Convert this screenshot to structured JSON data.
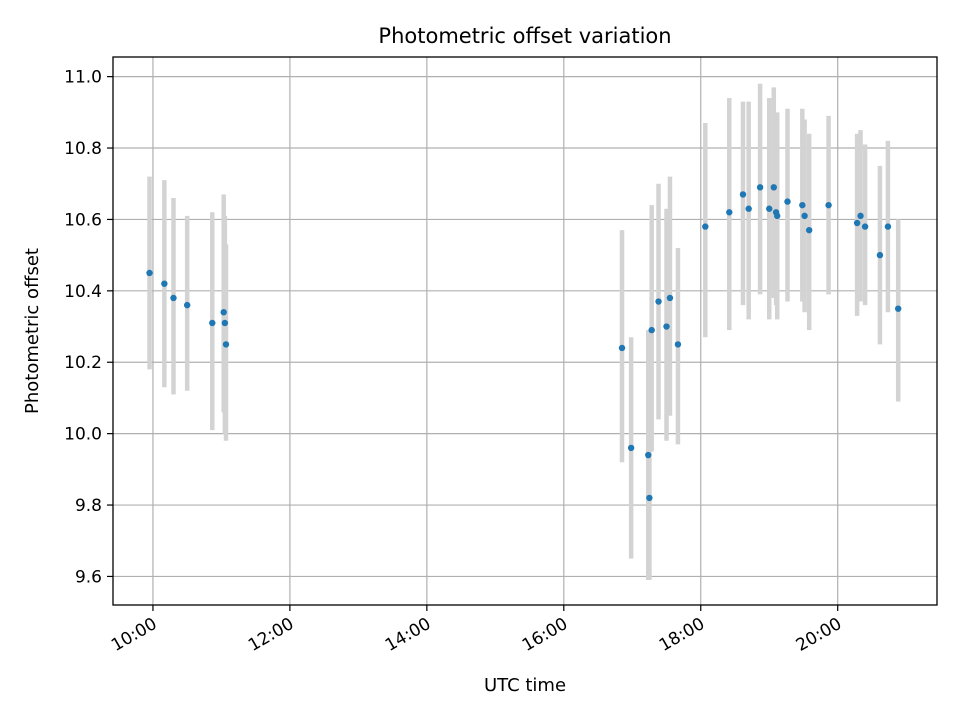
{
  "chart_data": {
    "type": "scatter",
    "title": "Photometric offset variation",
    "xlabel": "UTC time",
    "ylabel": "Photometric offset",
    "x_axis_type": "time",
    "xlim": [
      "09:25",
      "21:27"
    ],
    "ylim": [
      9.52,
      11.055
    ],
    "x_ticks": [
      "10:00",
      "12:00",
      "14:00",
      "16:00",
      "18:00",
      "20:00"
    ],
    "y_ticks": [
      9.6,
      9.8,
      10.0,
      10.2,
      10.4,
      10.6,
      10.8,
      11.0
    ],
    "grid": true,
    "legend": "none",
    "colors": {
      "points": "#1f77b4",
      "error_bars": "#d3d3d3",
      "grid": "#b0b0b0"
    },
    "series": [
      {
        "points": [
          {
            "x": "09:57",
            "y": 10.45,
            "err_low": 10.18,
            "err_high": 10.72
          },
          {
            "x": "10:10",
            "y": 10.42,
            "err_low": 10.13,
            "err_high": 10.71
          },
          {
            "x": "10:18",
            "y": 10.38,
            "err_low": 10.11,
            "err_high": 10.66
          },
          {
            "x": "10:30",
            "y": 10.36,
            "err_low": 10.12,
            "err_high": 10.61
          },
          {
            "x": "10:52",
            "y": 10.31,
            "err_low": 10.01,
            "err_high": 10.62
          },
          {
            "x": "11:02",
            "y": 10.34,
            "err_low": 10.06,
            "err_high": 10.67
          },
          {
            "x": "11:03",
            "y": 10.31,
            "err_low": 10.0,
            "err_high": 10.61
          },
          {
            "x": "11:04",
            "y": 10.25,
            "err_low": 9.98,
            "err_high": 10.53
          },
          {
            "x": "16:51",
            "y": 10.24,
            "err_low": 9.92,
            "err_high": 10.57
          },
          {
            "x": "16:59",
            "y": 9.96,
            "err_low": 9.65,
            "err_high": 10.27
          },
          {
            "x": "17:14",
            "y": 9.94,
            "err_low": 9.59,
            "err_high": 10.29
          },
          {
            "x": "17:15",
            "y": 9.82,
            "err_low": 9.59,
            "err_high": 10.06
          },
          {
            "x": "17:17",
            "y": 10.29,
            "err_low": 9.95,
            "err_high": 10.64
          },
          {
            "x": "17:23",
            "y": 10.37,
            "err_low": 10.04,
            "err_high": 10.7
          },
          {
            "x": "17:30",
            "y": 10.3,
            "err_low": 9.98,
            "err_high": 10.63
          },
          {
            "x": "17:33",
            "y": 10.38,
            "err_low": 10.05,
            "err_high": 10.72
          },
          {
            "x": "17:40",
            "y": 10.25,
            "err_low": 9.97,
            "err_high": 10.52
          },
          {
            "x": "18:04",
            "y": 10.58,
            "err_low": 10.27,
            "err_high": 10.87
          },
          {
            "x": "18:25",
            "y": 10.62,
            "err_low": 10.29,
            "err_high": 10.94
          },
          {
            "x": "18:37",
            "y": 10.67,
            "err_low": 10.36,
            "err_high": 10.93
          },
          {
            "x": "18:42",
            "y": 10.63,
            "err_low": 10.32,
            "err_high": 10.93
          },
          {
            "x": "18:52",
            "y": 10.69,
            "err_low": 10.39,
            "err_high": 10.98
          },
          {
            "x": "19:00",
            "y": 10.63,
            "err_low": 10.32,
            "err_high": 10.94
          },
          {
            "x": "19:04",
            "y": 10.69,
            "err_low": 10.38,
            "err_high": 10.97
          },
          {
            "x": "19:06",
            "y": 10.62,
            "err_low": 10.36,
            "err_high": 10.88
          },
          {
            "x": "19:07",
            "y": 10.61,
            "err_low": 10.32,
            "err_high": 10.9
          },
          {
            "x": "19:16",
            "y": 10.65,
            "err_low": 10.37,
            "err_high": 10.91
          },
          {
            "x": "19:29",
            "y": 10.64,
            "err_low": 10.37,
            "err_high": 10.91
          },
          {
            "x": "19:31",
            "y": 10.61,
            "err_low": 10.34,
            "err_high": 10.88
          },
          {
            "x": "19:35",
            "y": 10.57,
            "err_low": 10.29,
            "err_high": 10.84
          },
          {
            "x": "19:52",
            "y": 10.64,
            "err_low": 10.39,
            "err_high": 10.89
          },
          {
            "x": "20:17",
            "y": 10.59,
            "err_low": 10.33,
            "err_high": 10.84
          },
          {
            "x": "20:20",
            "y": 10.61,
            "err_low": 10.37,
            "err_high": 10.85
          },
          {
            "x": "20:24",
            "y": 10.58,
            "err_low": 10.36,
            "err_high": 10.81
          },
          {
            "x": "20:37",
            "y": 10.5,
            "err_low": 10.25,
            "err_high": 10.75
          },
          {
            "x": "20:44",
            "y": 10.58,
            "err_low": 10.34,
            "err_high": 10.82
          },
          {
            "x": "20:53",
            "y": 10.35,
            "err_low": 10.09,
            "err_high": 10.6
          }
        ]
      }
    ]
  }
}
